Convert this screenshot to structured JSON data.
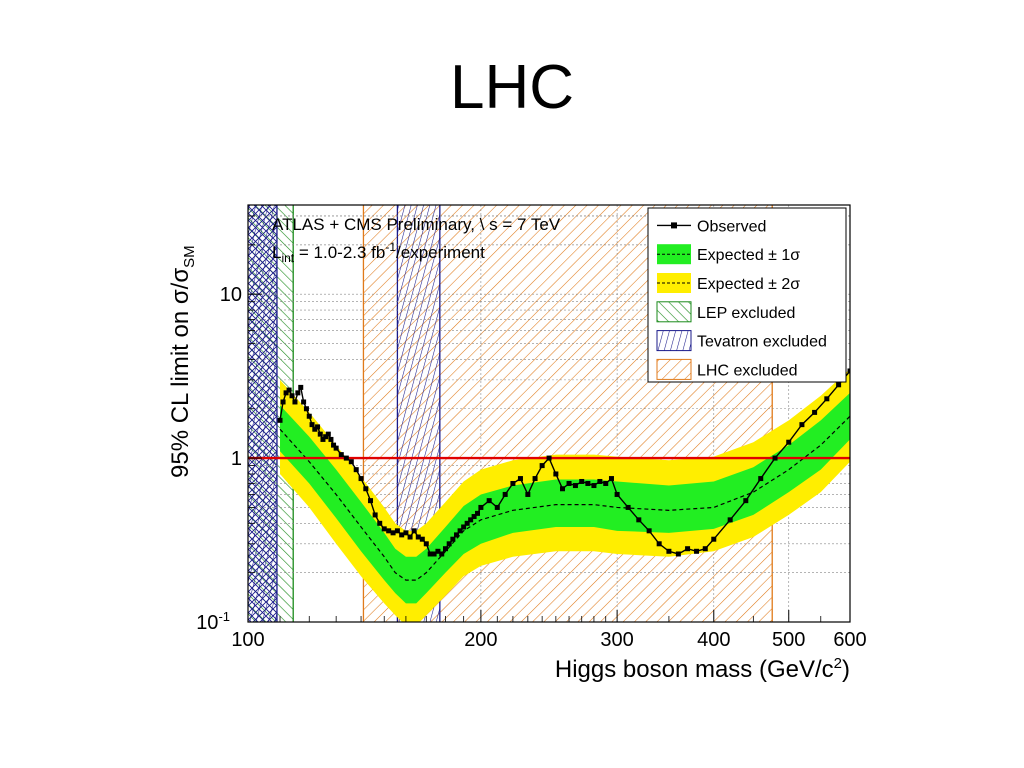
{
  "slide": {
    "title": "LHC"
  },
  "chart_data": {
    "type": "line",
    "header": {
      "line1": "ATLAS + CMS Preliminary, \\ s = 7 TeV",
      "line2_prefix": "L",
      "line2_sub": "int",
      "line2_mid": " = 1.0-2.3 fb",
      "line2_sup": "-1",
      "line2_suffix": "/experiment"
    },
    "xlabel": {
      "main": "Higgs boson mass (GeV/c",
      "sup": "2",
      "close": ")"
    },
    "ylabel": {
      "main": "95% CL limit on σ/σ",
      "sub": "SM"
    },
    "x_scale": "log",
    "y_scale": "log",
    "xlim": [
      100,
      600
    ],
    "ylim": [
      0.1,
      35
    ],
    "x_ticks": [
      {
        "v": 100,
        "label": "100"
      },
      {
        "v": 200,
        "label": "200"
      },
      {
        "v": 300,
        "label": "300"
      },
      {
        "v": 400,
        "label": "400"
      },
      {
        "v": 500,
        "label": "500"
      },
      {
        "v": 600,
        "label": "600"
      }
    ],
    "y_ticks": [
      {
        "v": 0.1,
        "base": "10",
        "exp": "-1"
      },
      {
        "v": 1,
        "base": "1",
        "exp": ""
      },
      {
        "v": 10,
        "base": "10",
        "exp": ""
      }
    ],
    "grid": true,
    "reference_line": {
      "y": 1,
      "color": "#e00000"
    },
    "excluded_regions": [
      {
        "name": "LEP excluded",
        "from": 100,
        "to": 114.4,
        "color": "#1a8a1a",
        "pattern": "lep"
      },
      {
        "name": "Tevatron excluded",
        "from": 100,
        "to": 109,
        "color": "#1a1a8a",
        "pattern": "tev"
      },
      {
        "name": "Tevatron excluded",
        "from": 156,
        "to": 177,
        "color": "#1a1a8a",
        "pattern": "tev"
      },
      {
        "name": "LHC excluded",
        "from": 141,
        "to": 476,
        "color": "#e07a1a",
        "pattern": "lhc"
      }
    ],
    "series": [
      {
        "name": "Observed",
        "color": "#000000",
        "x": [
          110,
          111,
          112,
          113,
          114,
          115,
          116,
          117,
          118,
          119,
          120,
          121,
          122,
          123,
          124,
          125,
          126,
          127,
          128,
          129,
          130,
          132,
          134,
          136,
          138,
          140,
          142,
          144,
          146,
          148,
          150,
          152,
          154,
          156,
          158,
          160,
          162,
          164,
          166,
          168,
          170,
          172,
          174,
          176,
          178,
          180,
          182,
          184,
          186,
          188,
          190,
          192,
          194,
          196,
          198,
          200,
          205,
          210,
          215,
          220,
          225,
          230,
          235,
          240,
          245,
          250,
          255,
          260,
          265,
          270,
          275,
          280,
          285,
          290,
          295,
          300,
          310,
          320,
          330,
          340,
          350,
          360,
          370,
          380,
          390,
          400,
          420,
          440,
          460,
          480,
          500,
          520,
          540,
          560,
          580,
          600
        ],
        "y": [
          1.7,
          2.2,
          2.5,
          2.6,
          2.4,
          2.2,
          2.5,
          2.7,
          2.2,
          2.0,
          1.8,
          1.6,
          1.5,
          1.55,
          1.4,
          1.3,
          1.35,
          1.4,
          1.3,
          1.2,
          1.15,
          1.05,
          1.0,
          0.95,
          0.85,
          0.75,
          0.65,
          0.55,
          0.45,
          0.4,
          0.37,
          0.36,
          0.35,
          0.36,
          0.34,
          0.35,
          0.33,
          0.36,
          0.33,
          0.32,
          0.3,
          0.26,
          0.26,
          0.27,
          0.26,
          0.28,
          0.3,
          0.32,
          0.34,
          0.36,
          0.38,
          0.4,
          0.42,
          0.44,
          0.46,
          0.5,
          0.55,
          0.5,
          0.6,
          0.7,
          0.75,
          0.6,
          0.75,
          0.9,
          1.0,
          0.8,
          0.65,
          0.7,
          0.68,
          0.72,
          0.7,
          0.68,
          0.72,
          0.7,
          0.75,
          0.6,
          0.5,
          0.42,
          0.36,
          0.3,
          0.27,
          0.26,
          0.28,
          0.27,
          0.28,
          0.32,
          0.42,
          0.55,
          0.75,
          1.0,
          1.25,
          1.6,
          1.9,
          2.3,
          2.8,
          3.4
        ]
      },
      {
        "name": "Expected ± 1σ",
        "color": "#000000",
        "band_color": "#22ee22",
        "x": [
          110,
          120,
          130,
          140,
          150,
          155,
          160,
          165,
          170,
          180,
          190,
          200,
          220,
          250,
          280,
          300,
          350,
          400,
          450,
          500,
          550,
          600
        ],
        "y": [
          1.5,
          0.95,
          0.6,
          0.38,
          0.25,
          0.2,
          0.18,
          0.18,
          0.2,
          0.27,
          0.36,
          0.42,
          0.48,
          0.52,
          0.52,
          0.5,
          0.48,
          0.5,
          0.62,
          0.85,
          1.2,
          1.8
        ],
        "y_lo": [
          1.1,
          0.7,
          0.43,
          0.27,
          0.18,
          0.15,
          0.13,
          0.13,
          0.15,
          0.2,
          0.26,
          0.3,
          0.35,
          0.38,
          0.38,
          0.36,
          0.35,
          0.37,
          0.45,
          0.62,
          0.85,
          1.3
        ],
        "y_hi": [
          2.1,
          1.35,
          0.85,
          0.54,
          0.35,
          0.28,
          0.25,
          0.25,
          0.28,
          0.38,
          0.51,
          0.6,
          0.68,
          0.74,
          0.74,
          0.72,
          0.68,
          0.72,
          0.88,
          1.2,
          1.7,
          2.5
        ]
      },
      {
        "name": "Expected ± 2σ",
        "color": "#000000",
        "band_color": "#ffee00",
        "y_lo": [
          0.8,
          0.5,
          0.3,
          0.19,
          0.13,
          0.11,
          0.095,
          0.095,
          0.11,
          0.145,
          0.19,
          0.22,
          0.25,
          0.27,
          0.27,
          0.26,
          0.25,
          0.27,
          0.33,
          0.45,
          0.62,
          0.95
        ],
        "y_hi": [
          3.0,
          1.9,
          1.2,
          0.77,
          0.5,
          0.4,
          0.36,
          0.36,
          0.4,
          0.54,
          0.72,
          0.85,
          0.97,
          1.05,
          1.05,
          1.02,
          0.97,
          1.02,
          1.25,
          1.7,
          2.4,
          3.5
        ]
      }
    ],
    "legend": {
      "placement": "top-right",
      "entries": [
        {
          "label": "Observed",
          "kind": "observed"
        },
        {
          "label": "Expected ± 1σ",
          "kind": "band1"
        },
        {
          "label": "Expected ± 2σ",
          "kind": "band2"
        },
        {
          "label": "LEP excluded",
          "kind": "lep"
        },
        {
          "label": "Tevatron excluded",
          "kind": "tev"
        },
        {
          "label": "LHC excluded",
          "kind": "lhc"
        }
      ]
    }
  }
}
